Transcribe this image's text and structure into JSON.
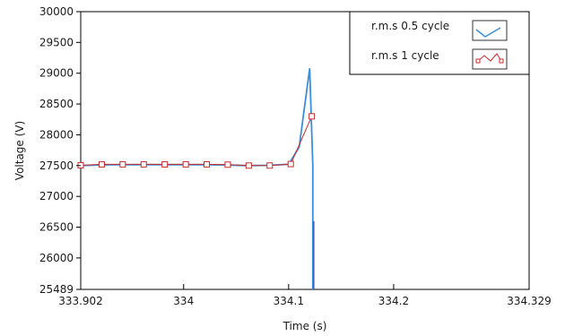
{
  "chart_data": {
    "type": "line",
    "xlabel": "Time (s)",
    "ylabel": "Voltage (V)",
    "xlim": [
      333.902,
      334.329
    ],
    "ylim": [
      25489,
      30000
    ],
    "x_ticks": [
      {
        "value": 333.902,
        "label": "333.902"
      },
      {
        "value": 334.0,
        "label": "334"
      },
      {
        "value": 334.1,
        "label": "334.1"
      },
      {
        "value": 334.2,
        "label": "334.2"
      },
      {
        "value": 334.329,
        "label": "334.329"
      }
    ],
    "y_ticks": [
      {
        "value": 25489,
        "label": "25489"
      },
      {
        "value": 26000,
        "label": "26000"
      },
      {
        "value": 26500,
        "label": "26500"
      },
      {
        "value": 27000,
        "label": "27000"
      },
      {
        "value": 27500,
        "label": "27500"
      },
      {
        "value": 28000,
        "label": "28000"
      },
      {
        "value": 28500,
        "label": "28500"
      },
      {
        "value": 29000,
        "label": "29000"
      },
      {
        "value": 29500,
        "label": "29500"
      },
      {
        "value": 30000,
        "label": "30000"
      }
    ],
    "grid": false,
    "legend_position": "top-right",
    "series": [
      {
        "name": "r.m.s 0.5 cycle",
        "color": "#3a8fdd",
        "marker": "none",
        "x": [
          333.902,
          333.92,
          333.94,
          333.96,
          333.98,
          334.0,
          334.02,
          334.04,
          334.06,
          334.08,
          334.1,
          334.11,
          334.12,
          334.123,
          334.123
        ],
        "y": [
          27500,
          27510,
          27515,
          27515,
          27515,
          27515,
          27515,
          27510,
          27500,
          27505,
          27520,
          27800,
          29080,
          27500,
          25489
        ]
      },
      {
        "name": "r.m.s 1 cycle",
        "color": "#cc2b2b",
        "marker": "square",
        "x": [
          333.902,
          333.922,
          333.942,
          333.962,
          333.982,
          334.002,
          334.022,
          334.042,
          334.062,
          334.082,
          334.102,
          334.122
        ],
        "y": [
          27505,
          27520,
          27520,
          27520,
          27520,
          27520,
          27520,
          27515,
          27500,
          27500,
          27525,
          28300
        ]
      },
      {
        "name": "",
        "color": "#3a3aa8",
        "marker": "none",
        "x": [
          334.124,
          334.124
        ],
        "y": [
          26600,
          25489
        ]
      }
    ]
  }
}
